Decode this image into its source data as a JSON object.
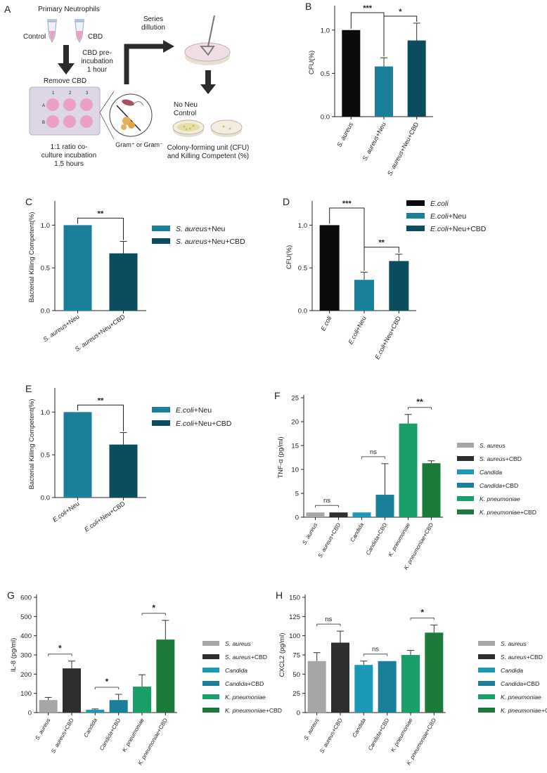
{
  "colors": {
    "black": "#0b0b0b",
    "teal": "#1a7f98",
    "darkteal": "#0b4d5e",
    "grey": "#a6a6a6",
    "dark": "#2e2e2e",
    "cyan": "#1c99b7",
    "green": "#1a9e6a",
    "dkgreen": "#1b7a3a",
    "pink": "#e9a0c3",
    "arrow": "#2b2b2b",
    "dish": "#f3ede0",
    "dishEdge": "#bdb5a6",
    "dishFill": "#e8c8d8",
    "plate": "#dcd6e6",
    "colony": "#d9d27a"
  },
  "schematic": {
    "label": "A",
    "title": "Primary Neutrophils",
    "control": "Control",
    "cbd": "CBD",
    "preincubation": [
      "CBD pre-",
      "incubation",
      "1 hour"
    ],
    "remove": "Remove CBD",
    "series": [
      "Series",
      "dillution"
    ],
    "noneu": [
      "No Neu",
      "Control"
    ],
    "gram": "Gram⁺ or Gram⁻",
    "coculture": [
      "1:1 ratio co-",
      "culture incubation",
      "1.5 hours"
    ],
    "cfu": [
      "Colony-forming unit (CFU)",
      "and Killing Competent (%)"
    ],
    "wells": [
      "1",
      "2",
      "3"
    ],
    "rows": [
      "A",
      "B"
    ]
  },
  "chart_data": [
    {
      "id": "B",
      "label": "B",
      "type": "bar",
      "ylabel": "CFU(%)",
      "ylim": [
        0,
        1.25
      ],
      "ticks": [
        "0.0",
        "0.5",
        "1.0"
      ],
      "tickvals": [
        0,
        0.5,
        1.0
      ],
      "categories": [
        "S. aureus",
        "S. aureus+Neu",
        "S. aureus+Neu+CBD"
      ],
      "values": [
        1.0,
        0.58,
        0.88
      ],
      "errors": [
        0,
        0.1,
        0.2
      ],
      "colors": [
        "black",
        "teal",
        "darkteal"
      ],
      "legend": [
        "S. aureus",
        "S. aureus+Neu",
        "S. aureus+Neu+CBD"
      ],
      "brackets": [
        {
          "from": 0,
          "to": 1,
          "label": "***"
        },
        {
          "from": 1,
          "to": 2,
          "label": "*"
        }
      ]
    },
    {
      "id": "C",
      "label": "C",
      "type": "bar",
      "ylabel": "Bacterial Killing Competent(%)",
      "ylim": [
        0,
        1.25
      ],
      "ticks": [
        "0.0",
        "0.5",
        "1.0"
      ],
      "tickvals": [
        0,
        0.5,
        1.0
      ],
      "categories": [
        "S. aureus+Neu",
        "S. aureus+Neu+CBD"
      ],
      "values": [
        1.0,
        0.67
      ],
      "errors": [
        0,
        0.14
      ],
      "colors": [
        "teal",
        "darkteal"
      ],
      "legend": [
        "S. aureus+Neu",
        "S. aureus+Neu+CBD"
      ],
      "brackets": [
        {
          "from": 0,
          "to": 1,
          "label": "**"
        }
      ]
    },
    {
      "id": "D",
      "label": "D",
      "type": "bar",
      "ylabel": "CFU(%)",
      "ylim": [
        0,
        1.25
      ],
      "ticks": [
        "0.0",
        "0.5",
        "1.0"
      ],
      "tickvals": [
        0,
        0.5,
        1.0
      ],
      "categories": [
        "E.coli",
        "E.coli+Neu",
        "E.coli+Neu+CBD"
      ],
      "values": [
        1.0,
        0.36,
        0.58
      ],
      "errors": [
        0,
        0.09,
        0.08
      ],
      "colors": [
        "black",
        "teal",
        "darkteal"
      ],
      "legend": [
        "E.coli",
        "E.coli+Neu",
        "E.coli+Neu+CBD"
      ],
      "brackets": [
        {
          "from": 0,
          "to": 1,
          "label": "***"
        },
        {
          "from": 1,
          "to": 2,
          "label": "**"
        }
      ]
    },
    {
      "id": "E",
      "label": "E",
      "type": "bar",
      "ylabel": "Bacterial Killing Competent(%)",
      "ylim": [
        0,
        1.25
      ],
      "ticks": [
        "0.0",
        "0.5",
        "1.0"
      ],
      "tickvals": [
        0,
        0.5,
        1.0
      ],
      "categories": [
        "E.coli+Neu",
        "E.coli+Neu+CBD"
      ],
      "values": [
        1.0,
        0.62
      ],
      "errors": [
        0,
        0.14
      ],
      "colors": [
        "teal",
        "darkteal"
      ],
      "legend": [
        "E.coli+Neu",
        "E.coli+Neu+CBD"
      ],
      "brackets": [
        {
          "from": 0,
          "to": 1,
          "label": "**"
        }
      ]
    },
    {
      "id": "F",
      "label": "F",
      "type": "bar",
      "ylabel": "TNF-α (pg/ml)",
      "ylim": [
        0,
        25
      ],
      "ticks": [
        "0",
        "5",
        "10",
        "15",
        "20",
        "25"
      ],
      "tickvals": [
        0,
        5,
        10,
        15,
        20,
        25
      ],
      "categories": [
        "S. aureus",
        "S. aureus+CBD",
        "Candida",
        "Candida+CBD",
        "K. pneumoniae",
        "K. pneumoniae+CBD"
      ],
      "values": [
        1.0,
        1.0,
        1.0,
        4.7,
        19.6,
        11.3
      ],
      "errors": [
        0,
        0,
        0,
        6.5,
        1.9,
        0.5
      ],
      "colors": [
        "grey",
        "dark",
        "cyan",
        "teal",
        "green",
        "dkgreen"
      ],
      "legend": [
        "S. aureus",
        "S. aureus+CBD",
        "Candida",
        "Candida+CBD",
        "K. pneumoniae",
        "K. pneumoniae+CBD"
      ],
      "brackets": [
        {
          "from": 0,
          "to": 1,
          "label": "ns"
        },
        {
          "from": 2,
          "to": 3,
          "label": "ns"
        },
        {
          "from": 4,
          "to": 5,
          "label": "**"
        }
      ]
    },
    {
      "id": "G",
      "label": "G",
      "type": "bar",
      "ylabel": "IL-8 (pg/ml)",
      "ylim": [
        0,
        600
      ],
      "ticks": [
        "0",
        "100",
        "200",
        "300",
        "400",
        "500",
        "600"
      ],
      "tickvals": [
        0,
        100,
        200,
        300,
        400,
        500,
        600
      ],
      "categories": [
        "S. aureus",
        "S. aureus+CBD",
        "Candida",
        "Candida+CBD",
        "K. pneumoniae",
        "K. pneumoniae+CBD"
      ],
      "values": [
        65,
        230,
        15,
        65,
        135,
        380
      ],
      "errors": [
        14,
        38,
        4,
        30,
        62,
        100
      ],
      "colors": [
        "grey",
        "dark",
        "cyan",
        "teal",
        "green",
        "dkgreen"
      ],
      "legend": [
        "S. aureus",
        "S. aureus+CBD",
        "Candida",
        "Candida+CBD",
        "K. pneumoniae",
        "K. pneumoniae+CBD"
      ],
      "brackets": [
        {
          "from": 0,
          "to": 1,
          "label": "*"
        },
        {
          "from": 2,
          "to": 3,
          "label": "*"
        },
        {
          "from": 4,
          "to": 5,
          "label": "*"
        }
      ]
    },
    {
      "id": "H",
      "label": "H",
      "type": "bar",
      "ylabel": "CXCL2 (pg/ml)",
      "ylim": [
        0,
        150
      ],
      "ticks": [
        "0",
        "25",
        "50",
        "75",
        "100",
        "125",
        "150"
      ],
      "tickvals": [
        0,
        25,
        50,
        75,
        100,
        125,
        150
      ],
      "categories": [
        "S. aureus",
        "S. aureus+CBD",
        "Candida",
        "Candida+CBD",
        "K. pneumoniae",
        "K. pneumoniae+CBD"
      ],
      "values": [
        67,
        91,
        62,
        67,
        75,
        104
      ],
      "errors": [
        11,
        15,
        5,
        0,
        6,
        10
      ],
      "colors": [
        "grey",
        "dark",
        "cyan",
        "teal",
        "green",
        "dkgreen"
      ],
      "legend": [
        "S. aureus",
        "S. aureus+CBD",
        "Candida",
        "Candida+CBD",
        "K. pneumoniae",
        "K. pneumoniae+CBD"
      ],
      "brackets": [
        {
          "from": 0,
          "to": 1,
          "label": "ns"
        },
        {
          "from": 2,
          "to": 3,
          "label": "ns"
        },
        {
          "from": 4,
          "to": 5,
          "label": "*"
        }
      ]
    }
  ]
}
